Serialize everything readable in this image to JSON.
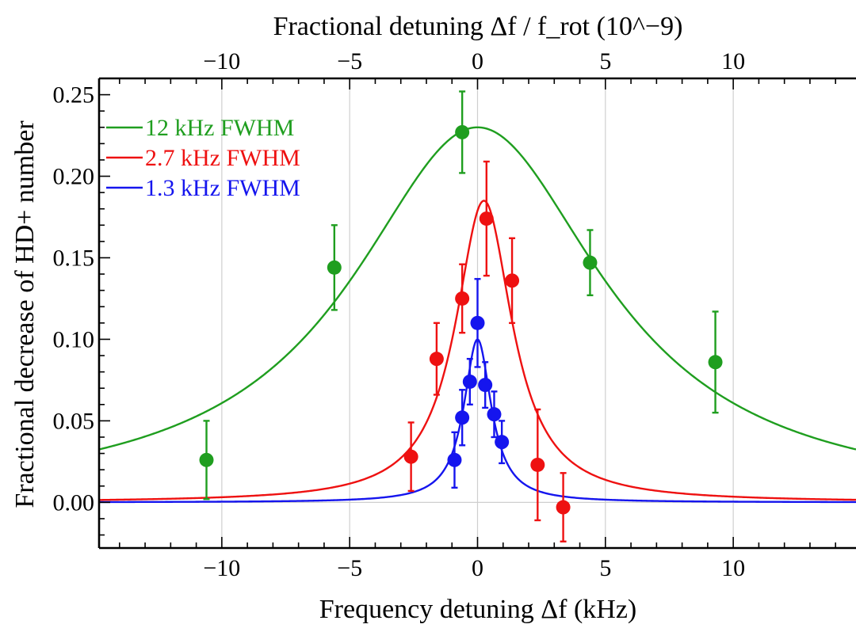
{
  "chart_data": {
    "type": "scatter",
    "title": "",
    "xlabel": "Frequency detuning Δf (kHz)",
    "x2label": "Fractional detuning Δf / f_rot (10^−9)",
    "ylabel": "Fractional decrease of HD+ number",
    "xlim": [
      -14.8,
      14.8
    ],
    "ylim": [
      -0.028,
      0.26
    ],
    "x_ticks": [
      -10,
      -5,
      0,
      5,
      10
    ],
    "x_tick_labels": [
      "−10",
      "−5",
      "0",
      "5",
      "10"
    ],
    "x2_ticks": [
      -10,
      -5,
      0,
      5,
      10
    ],
    "x2_tick_labels": [
      "−10",
      "−5",
      "0",
      "5",
      "10"
    ],
    "y_ticks": [
      0.0,
      0.05,
      0.1,
      0.15,
      0.2,
      0.25
    ],
    "y_tick_labels": [
      "0.00",
      "0.05",
      "0.10",
      "0.15",
      "0.20",
      "0.25"
    ],
    "grid": "vertical lines at x ticks; horizontal line at y = 0",
    "legend_position": "top-left",
    "series": [
      {
        "name": "12 kHz FWHM",
        "color": "#1f9e1f",
        "fit": {
          "shape": "lorentzian",
          "center": 0.0,
          "fwhm": 12.0,
          "amplitude": 0.23
        },
        "points": [
          {
            "x": -10.6,
            "y": 0.026,
            "err": 0.024
          },
          {
            "x": -5.6,
            "y": 0.144,
            "err": 0.026
          },
          {
            "x": -0.6,
            "y": 0.227,
            "err": 0.025
          },
          {
            "x": 4.4,
            "y": 0.147,
            "err": 0.02
          },
          {
            "x": 9.3,
            "y": 0.086,
            "err": 0.031
          }
        ]
      },
      {
        "name": "2.7 kHz FWHM",
        "color": "#ee1111",
        "fit": {
          "shape": "lorentzian",
          "center": 0.25,
          "fwhm": 2.7,
          "amplitude": 0.185
        },
        "points": [
          {
            "x": -2.6,
            "y": 0.028,
            "err": 0.021
          },
          {
            "x": -1.6,
            "y": 0.088,
            "err": 0.022
          },
          {
            "x": -0.6,
            "y": 0.125,
            "err": 0.021
          },
          {
            "x": 0.35,
            "y": 0.174,
            "err": 0.035
          },
          {
            "x": 1.35,
            "y": 0.136,
            "err": 0.026
          },
          {
            "x": 2.35,
            "y": 0.023,
            "err": 0.034
          },
          {
            "x": 3.35,
            "y": -0.003,
            "err": 0.021
          }
        ]
      },
      {
        "name": "1.3 kHz FWHM",
        "color": "#1515ee",
        "fit": {
          "shape": "lorentzian",
          "center": 0.0,
          "fwhm": 1.3,
          "amplitude": 0.1
        },
        "points": [
          {
            "x": -0.9,
            "y": 0.026,
            "err": 0.017
          },
          {
            "x": -0.6,
            "y": 0.052,
            "err": 0.017
          },
          {
            "x": -0.3,
            "y": 0.074,
            "err": 0.014
          },
          {
            "x": -0.0,
            "y": 0.11,
            "err": 0.027
          },
          {
            "x": 0.3,
            "y": 0.072,
            "err": 0.014
          },
          {
            "x": 0.65,
            "y": 0.054,
            "err": 0.014
          },
          {
            "x": 0.95,
            "y": 0.037,
            "err": 0.013
          }
        ]
      }
    ]
  }
}
